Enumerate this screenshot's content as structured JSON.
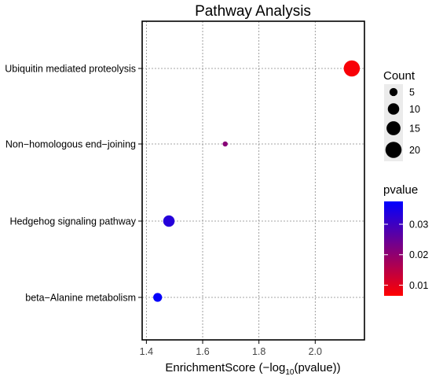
{
  "chart_data": {
    "type": "scatter",
    "title": "Pathway Analysis",
    "xlabel_parts": [
      "EnrichmentScore (−log",
      "10",
      "(pvalue))"
    ],
    "ylabel": "",
    "xlim": [
      1.385,
      2.175
    ],
    "xticks": [
      1.4,
      1.6,
      1.8,
      2.0
    ],
    "xtick_labels": [
      "1.4",
      "1.6",
      "1.8",
      "2.0"
    ],
    "grid": true,
    "categories": [
      "Ubiquitin mediated proteolysis",
      "Non−homologous end−joining",
      "Hedgehog signaling pathway",
      "beta−Alanine metabolism"
    ],
    "points": [
      {
        "pathway": "Ubiquitin mediated proteolysis",
        "enrichment_score": 2.13,
        "count": 20,
        "pvalue": 0.0074
      },
      {
        "pathway": "Non−homologous end−joining",
        "enrichment_score": 1.68,
        "count": 2,
        "pvalue": 0.021
      },
      {
        "pathway": "Hedgehog signaling pathway",
        "enrichment_score": 1.48,
        "count": 10,
        "pvalue": 0.033
      },
      {
        "pathway": "beta−Alanine metabolism",
        "enrichment_score": 1.44,
        "count": 6,
        "pvalue": 0.037
      }
    ],
    "size_legend": {
      "title": "Count",
      "entries": [
        {
          "label": "5",
          "value": 5
        },
        {
          "label": "10",
          "value": 10
        },
        {
          "label": "15",
          "value": 15
        },
        {
          "label": "20",
          "value": 20
        }
      ]
    },
    "color_legend": {
      "title": "pvalue",
      "range": [
        0.0065,
        0.0375
      ],
      "ticks": [
        {
          "label": "0.03",
          "value": 0.03
        },
        {
          "label": "0.02",
          "value": 0.02
        },
        {
          "label": "0.01",
          "value": 0.01
        }
      ],
      "low_color": "#ff0000",
      "high_color": "#0000ff"
    },
    "colors": {
      "grid": "#888888",
      "axis": "#000000",
      "legend_key_bg": "#ebebeb",
      "text": "#000000",
      "tick_text": "#444444"
    }
  }
}
